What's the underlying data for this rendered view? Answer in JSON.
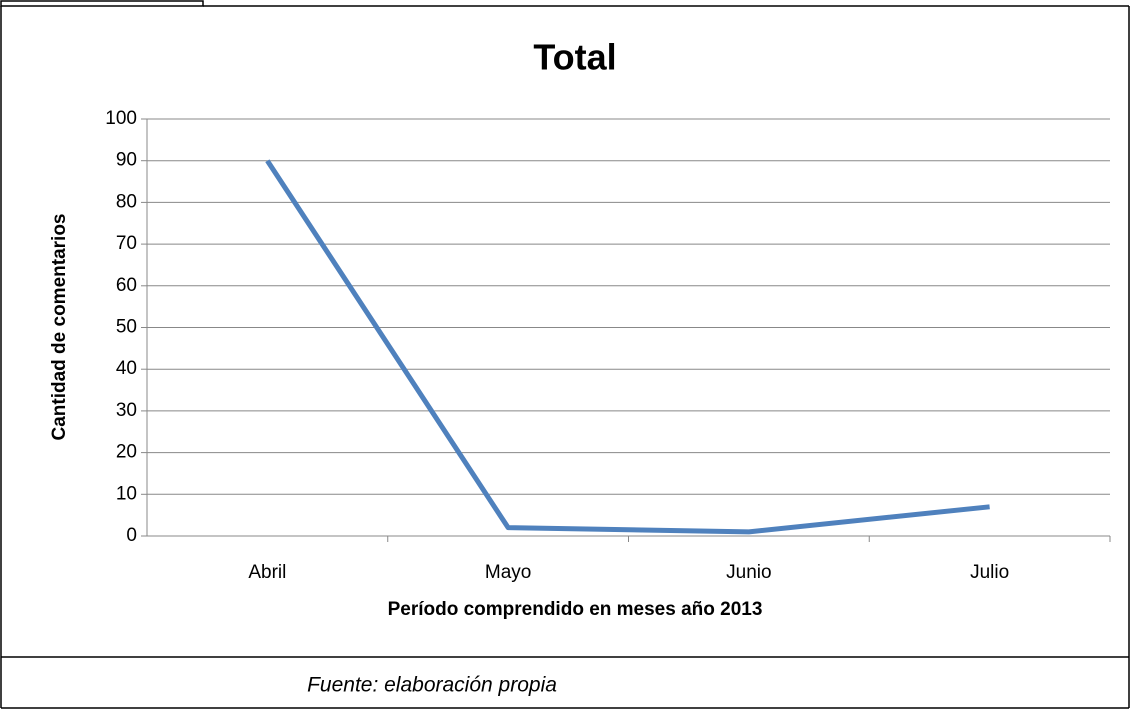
{
  "chart_data": {
    "type": "line",
    "title": "Total",
    "x_label": "Período comprendido en meses año 2013",
    "y_label": "Cantidad de comentarios",
    "categories": [
      "Abril",
      "Mayo",
      "Junio",
      "Julio"
    ],
    "series": [
      {
        "name": "Total",
        "color": "#4f81bd",
        "values": [
          90,
          2,
          1,
          7
        ]
      }
    ],
    "ylim": [
      0,
      100
    ],
    "yticks": [
      0,
      10,
      20,
      30,
      40,
      50,
      60,
      70,
      80,
      90,
      100
    ],
    "grid": true,
    "legend": false,
    "caption": "Fuente: elaboración propia"
  }
}
